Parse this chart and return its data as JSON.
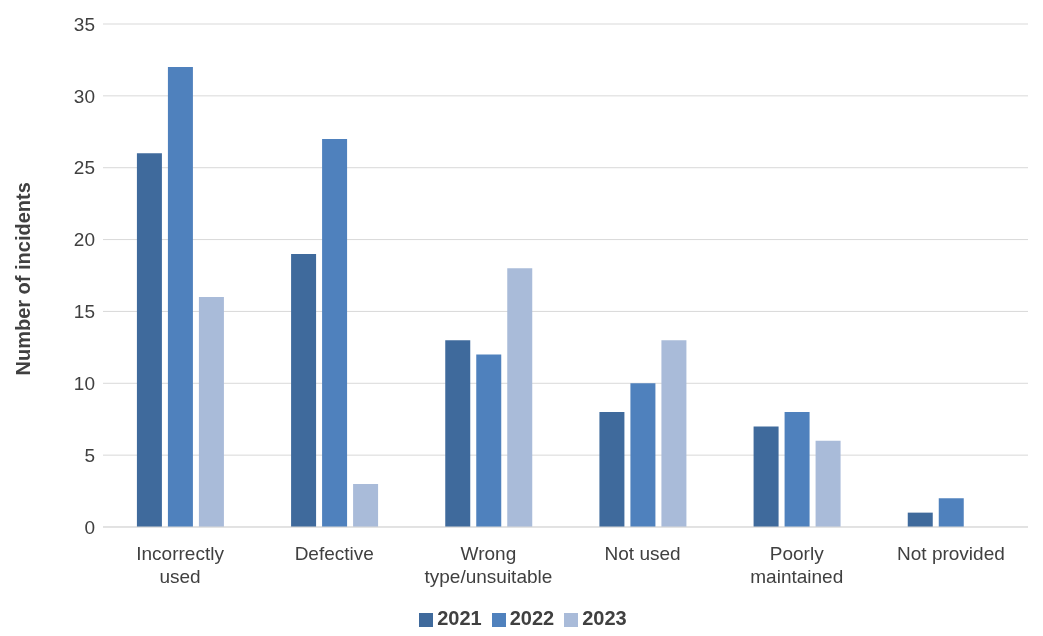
{
  "chart_data": {
    "type": "bar",
    "ylabel": "Number of incidents",
    "categories": [
      "Incorrectly used",
      "Defective",
      "Wrong type/unsuitable",
      "Not used",
      "Poorly maintained",
      "Not provided"
    ],
    "series": [
      {
        "name": "2021",
        "color": "#3f6a9c",
        "values": [
          26,
          19,
          13,
          8,
          7,
          1
        ]
      },
      {
        "name": "2022",
        "color": "#4f81bd",
        "values": [
          32,
          27,
          12,
          10,
          8,
          2
        ]
      },
      {
        "name": "2023",
        "color": "#a9bbd9",
        "values": [
          16,
          3,
          18,
          13,
          6,
          0
        ]
      }
    ],
    "ylim": [
      0,
      35
    ],
    "yticks": [
      0,
      5,
      10,
      15,
      20,
      25,
      30,
      35
    ],
    "grid": "y",
    "legend": "bottom"
  }
}
